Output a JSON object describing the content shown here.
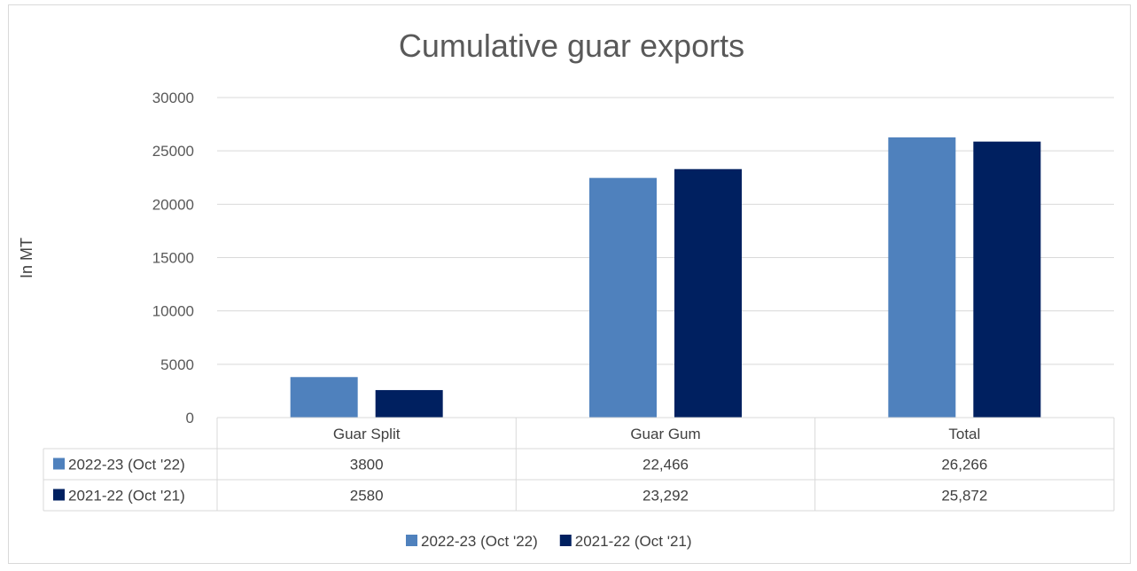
{
  "chart_data": {
    "type": "bar",
    "title": "Cumulative guar exports",
    "ylabel": "In MT",
    "xlabel": "",
    "categories": [
      "Guar Split",
      "Guar Gum",
      "Total"
    ],
    "series": [
      {
        "name": "2022-23 (Oct '22)",
        "values": [
          3800,
          22466,
          26266
        ],
        "labels": [
          "3800",
          "22,466",
          "26,266"
        ],
        "color": "#4f81bd"
      },
      {
        "name": "2021-22 (Oct '21)",
        "values": [
          2580,
          23292,
          25872
        ],
        "labels": [
          "2580",
          "23,292",
          "25,872"
        ],
        "color": "#002060"
      }
    ],
    "ylim": [
      0,
      30000
    ],
    "yticks": [
      "0",
      "5000",
      "10000",
      "15000",
      "20000",
      "25000",
      "30000"
    ],
    "grid": true,
    "legend": "bottom",
    "data_table": true
  }
}
